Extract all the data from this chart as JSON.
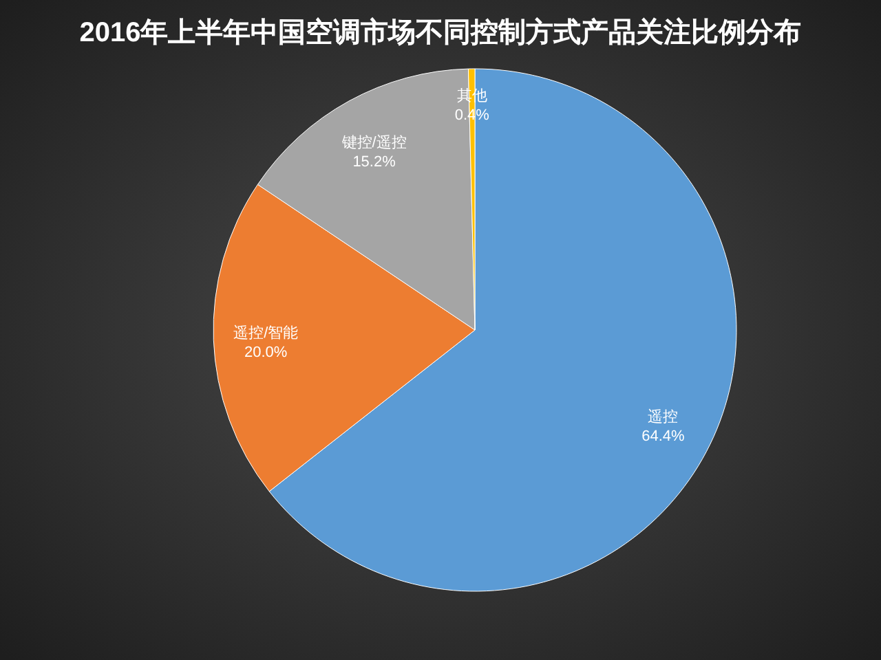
{
  "chart_data": {
    "type": "pie",
    "title": "2016年上半年中国空调市场不同控制方式产品关注比例分布",
    "categories": [
      "遥控",
      "遥控/智能",
      "键控/遥控",
      "其他"
    ],
    "values": [
      64.4,
      20.0,
      15.2,
      0.4
    ],
    "colors": [
      "#5b9bd5",
      "#ed7d31",
      "#a5a5a5",
      "#ffc000"
    ],
    "value_labels": [
      "64.4%",
      "20.0%",
      "15.2%",
      "0.4%"
    ],
    "legend": false
  }
}
